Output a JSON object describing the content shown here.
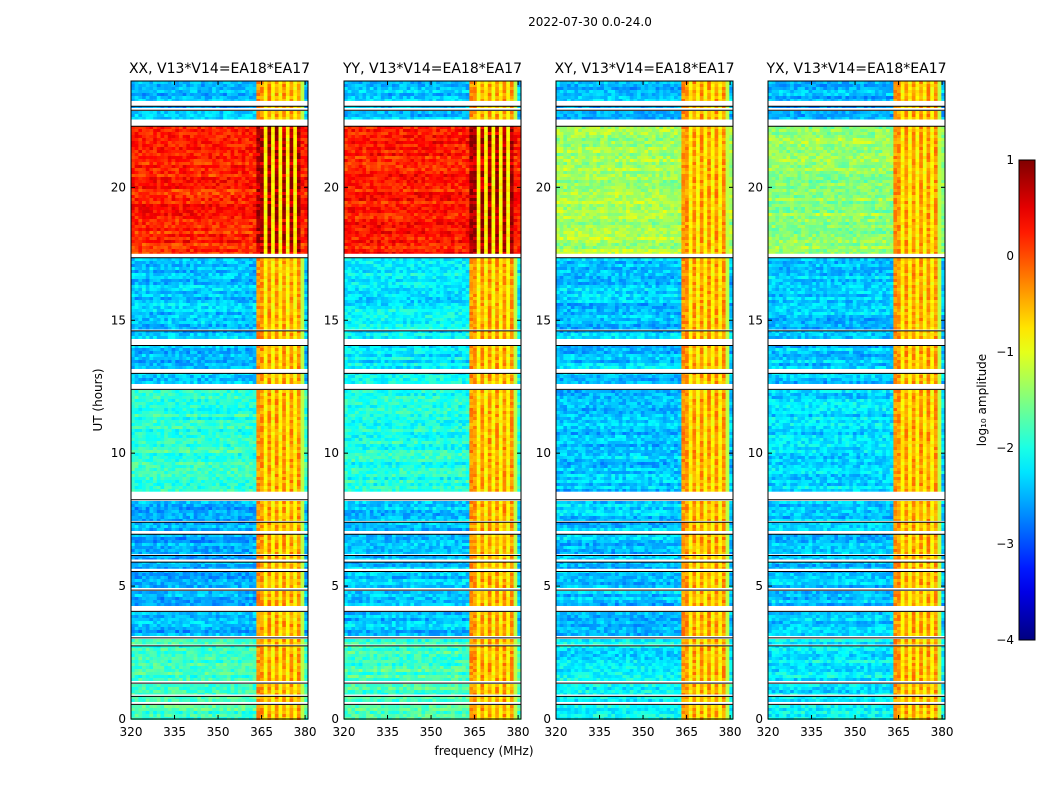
{
  "chart_data": {
    "type": "heatmap",
    "suptitle": "2022-07-30 0.0-24.0",
    "xlabel": "frequency (MHz)",
    "ylabel": "UT (hours)",
    "xlim": [
      320,
      381
    ],
    "ylim": [
      0,
      24
    ],
    "xticks": [
      320,
      335,
      350,
      365,
      380
    ],
    "yticks": [
      0,
      5,
      10,
      15,
      20
    ],
    "colorbar": {
      "label": "log₁₀ amplitude",
      "range": [
        -4,
        1
      ],
      "ticks": [
        1,
        0,
        -1,
        -2,
        -3,
        -4
      ],
      "tick_labels": [
        "1",
        "0",
        "−1",
        "−2",
        "−3",
        "−4"
      ],
      "colormap": "jet"
    },
    "rfi_band_mhz": [
      363.5,
      378
    ],
    "rfi_channels_mhz": [
      366,
      368.5,
      371,
      374,
      376.5
    ],
    "gaps_ut_hours": [
      [
        0.55,
        0.62
      ],
      [
        0.85,
        0.92
      ],
      [
        1.35,
        1.42
      ],
      [
        2.75,
        2.8
      ],
      [
        3.05,
        3.12
      ],
      [
        4.05,
        4.25
      ],
      [
        4.85,
        4.9
      ],
      [
        5.55,
        5.65
      ],
      [
        5.9,
        6.0
      ],
      [
        6.15,
        6.2
      ],
      [
        6.95,
        7.05
      ],
      [
        7.4,
        7.45
      ],
      [
        8.25,
        8.55
      ],
      [
        12.4,
        12.55
      ],
      [
        13.0,
        13.12
      ],
      [
        14.05,
        14.25
      ],
      [
        14.6,
        14.65
      ],
      [
        17.35,
        17.5
      ],
      [
        22.3,
        22.55
      ],
      [
        23.05,
        23.25
      ],
      [
        22.9,
        22.95
      ]
    ],
    "panels": [
      {
        "title": "XX, V13*V14=EA18*EA17",
        "segments": [
          {
            "ut": [
              0.0,
              3.1
            ],
            "level": -1.8
          },
          {
            "ut": [
              3.1,
              8.3
            ],
            "level": -2.5
          },
          {
            "ut": [
              8.5,
              12.4
            ],
            "level": -1.9
          },
          {
            "ut": [
              12.55,
              17.35
            ],
            "level": -2.4
          },
          {
            "ut": [
              17.5,
              22.3
            ],
            "level": 0.2
          },
          {
            "ut": [
              22.55,
              24.0
            ],
            "level": -2.5
          }
        ]
      },
      {
        "title": "YY, V13*V14=EA18*EA17",
        "segments": [
          {
            "ut": [
              0.0,
              3.1
            ],
            "level": -1.8
          },
          {
            "ut": [
              3.1,
              8.3
            ],
            "level": -2.4
          },
          {
            "ut": [
              8.5,
              12.4
            ],
            "level": -2.0
          },
          {
            "ut": [
              12.55,
              17.35
            ],
            "level": -2.2
          },
          {
            "ut": [
              17.5,
              22.3
            ],
            "level": 0.25
          },
          {
            "ut": [
              22.55,
              24.0
            ],
            "level": -2.4
          }
        ]
      },
      {
        "title": "XY, V13*V14=EA18*EA17",
        "segments": [
          {
            "ut": [
              0.0,
              3.1
            ],
            "level": -2.2
          },
          {
            "ut": [
              3.1,
              8.3
            ],
            "level": -2.4
          },
          {
            "ut": [
              8.5,
              12.4
            ],
            "level": -2.4
          },
          {
            "ut": [
              12.55,
              17.35
            ],
            "level": -2.4
          },
          {
            "ut": [
              17.5,
              22.3
            ],
            "level": -1.3
          },
          {
            "ut": [
              22.55,
              24.0
            ],
            "level": -2.5
          }
        ]
      },
      {
        "title": "YX, V13*V14=EA18*EA17",
        "segments": [
          {
            "ut": [
              0.0,
              3.1
            ],
            "level": -2.2
          },
          {
            "ut": [
              3.1,
              8.3
            ],
            "level": -2.4
          },
          {
            "ut": [
              8.5,
              12.4
            ],
            "level": -2.3
          },
          {
            "ut": [
              12.55,
              17.35
            ],
            "level": -2.4
          },
          {
            "ut": [
              17.5,
              22.3
            ],
            "level": -1.4
          },
          {
            "ut": [
              22.55,
              24.0
            ],
            "level": -2.5
          }
        ]
      }
    ]
  }
}
